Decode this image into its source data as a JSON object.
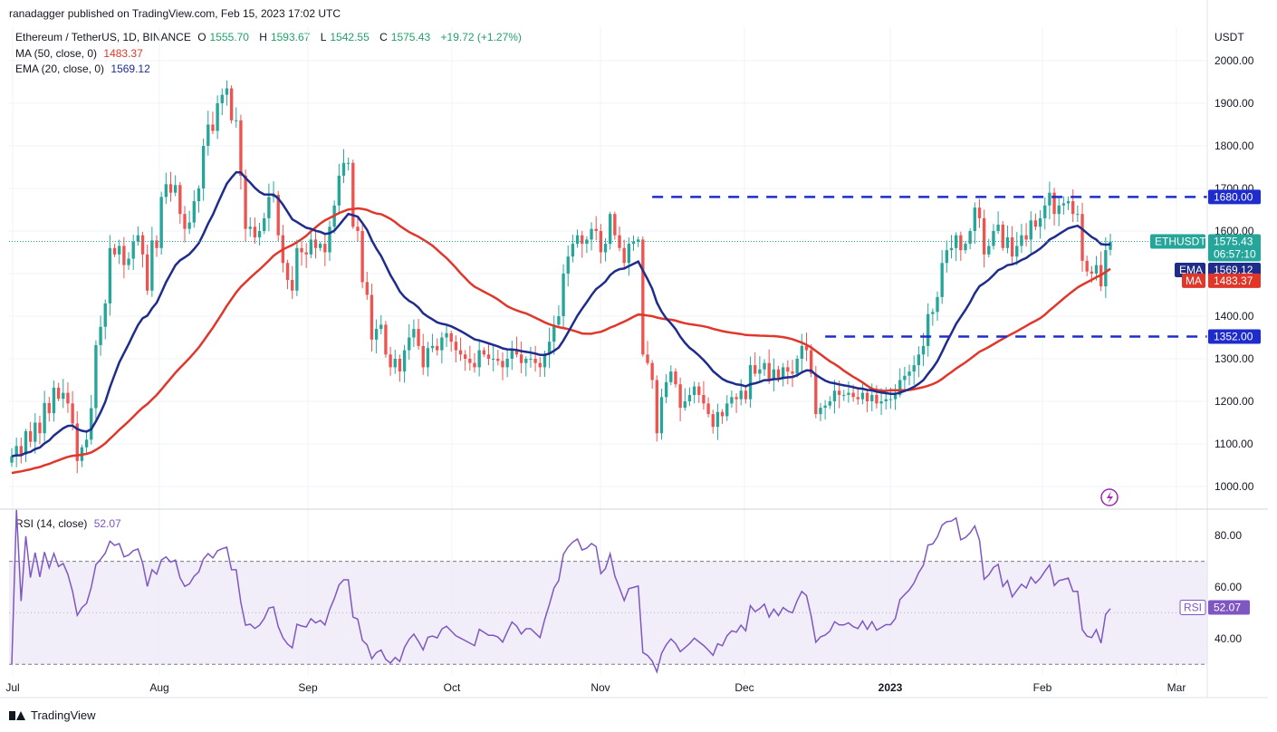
{
  "header": {
    "caption": "ranadagger published on TradingView.com, Feb 15, 2023 17:02 UTC"
  },
  "legend": {
    "symbol": "Ethereum / TetherUS, 1D, BINANCE",
    "o_label": "O",
    "o_value": "1555.70",
    "h_label": "H",
    "h_value": "1593.67",
    "l_label": "L",
    "l_value": "1542.55",
    "c_label": "C",
    "c_value": "1575.43",
    "change": "+19.72 (+1.27%)",
    "ma_label": "MA (50, close, 0)",
    "ma_value": "1483.37",
    "ema_label": "EMA (20, close, 0)",
    "ema_value": "1569.12",
    "rsi_label": "RSI (14, close)",
    "rsi_value": "52.07"
  },
  "footer": {
    "brand": "TradingView"
  },
  "colors": {
    "up": "#26a69a",
    "down": "#ef5350",
    "ma": "#e0372a",
    "ema": "#1e2c8c",
    "rsi": "#7e57c2",
    "level": "#1e2ccc",
    "grid": "#f0f3fa",
    "band": "#ede7f6"
  },
  "chart_data": [
    {
      "type": "candlestick",
      "title": "Ethereum / TetherUS, 1D, BINANCE",
      "currency": "USDT",
      "ylim": [
        950,
        2060
      ],
      "yticks": [
        "1000.00",
        "1100.00",
        "1200.00",
        "1300.00",
        "1400.00",
        "1500.00",
        "1600.00",
        "1700.00",
        "1800.00",
        "1900.00",
        "2000.00"
      ],
      "xticks": [
        "Jul",
        "Aug",
        "Sep",
        "Oct",
        "Nov",
        "Dec",
        "2023",
        "Feb",
        "Mar"
      ],
      "levels": [
        {
          "value": 1680,
          "label": "1680.00",
          "start_day": 137
        },
        {
          "value": 1352,
          "label": "1352.00",
          "start_day": 174
        }
      ],
      "badges": [
        {
          "name": "ETHUSDT",
          "value": "1575.43",
          "sub": "06:57:10"
        },
        {
          "name": "EMA",
          "value": "1569.12"
        },
        {
          "name": "MA",
          "value": "1483.37"
        }
      ],
      "close_price": 1575.43,
      "closes": [
        1071,
        1095,
        1075,
        1130,
        1105,
        1150,
        1125,
        1196,
        1172,
        1232,
        1206,
        1220,
        1195,
        1148,
        1060,
        1092,
        1110,
        1184,
        1332,
        1375,
        1430,
        1560,
        1545,
        1565,
        1520,
        1535,
        1575,
        1590,
        1545,
        1460,
        1578,
        1560,
        1680,
        1710,
        1690,
        1708,
        1640,
        1605,
        1620,
        1670,
        1700,
        1800,
        1850,
        1835,
        1900,
        1920,
        1935,
        1860,
        1860,
        1730,
        1605,
        1610,
        1585,
        1600,
        1630,
        1680,
        1685,
        1590,
        1525,
        1485,
        1460,
        1560,
        1550,
        1545,
        1580,
        1560,
        1570,
        1550,
        1610,
        1660,
        1730,
        1760,
        1760,
        1610,
        1600,
        1480,
        1450,
        1345,
        1370,
        1380,
        1310,
        1280,
        1300,
        1270,
        1320,
        1350,
        1370,
        1330,
        1280,
        1325,
        1330,
        1320,
        1350,
        1360,
        1340,
        1320,
        1310,
        1300,
        1290,
        1280,
        1320,
        1310,
        1300,
        1300,
        1295,
        1280,
        1300,
        1320,
        1310,
        1290,
        1300,
        1300,
        1290,
        1280,
        1310,
        1340,
        1380,
        1400,
        1500,
        1540,
        1570,
        1590,
        1570,
        1580,
        1605,
        1600,
        1550,
        1570,
        1640,
        1590,
        1560,
        1525,
        1570,
        1575,
        1580,
        1310,
        1290,
        1250,
        1125,
        1210,
        1245,
        1270,
        1240,
        1185,
        1200,
        1215,
        1235,
        1215,
        1195,
        1170,
        1140,
        1175,
        1165,
        1195,
        1210,
        1205,
        1225,
        1205,
        1285,
        1265,
        1275,
        1290,
        1250,
        1275,
        1255,
        1280,
        1270,
        1265,
        1300,
        1330,
        1320,
        1265,
        1170,
        1185,
        1190,
        1200,
        1225,
        1215,
        1215,
        1220,
        1210,
        1205,
        1220,
        1200,
        1215,
        1195,
        1200,
        1205,
        1205,
        1215,
        1250,
        1260,
        1270,
        1285,
        1310,
        1330,
        1405,
        1410,
        1445,
        1525,
        1555,
        1560,
        1590,
        1555,
        1570,
        1600,
        1655,
        1630,
        1545,
        1565,
        1600,
        1615,
        1560,
        1585,
        1540,
        1565,
        1590,
        1580,
        1625,
        1610,
        1630,
        1660,
        1690,
        1640,
        1660,
        1665,
        1670,
        1640,
        1640,
        1530,
        1505,
        1500,
        1520,
        1470,
        1555,
        1575
      ]
    },
    {
      "type": "line",
      "title": "RSI (14, close)",
      "ylim": [
        27,
        90
      ],
      "yticks": [
        "40.00",
        "60.00",
        "80.00"
      ],
      "band": [
        30,
        70
      ],
      "midline": 50,
      "badge": {
        "name": "RSI",
        "value": "52.07"
      }
    }
  ]
}
